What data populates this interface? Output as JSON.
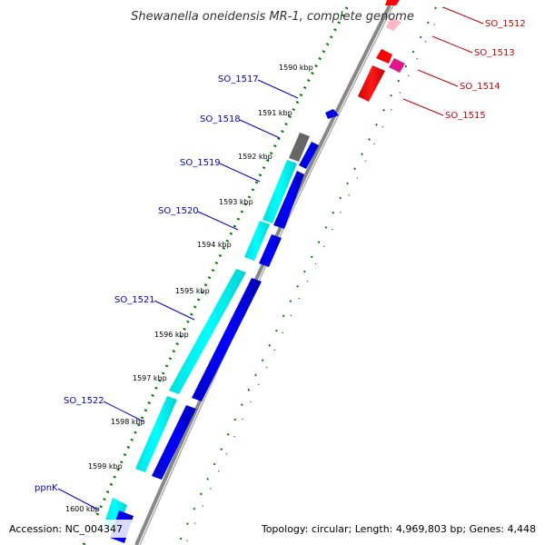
{
  "title": "Shewanella oneidensis MR-1, complete genome",
  "footer": {
    "accession": "Accession: NC_004347",
    "topology": "Topology: circular; Length: 4,969,803 bp; Genes: 4,448"
  },
  "kbp_ticks": [
    "1590 kbp",
    "1591 kbp",
    "1592 kbp",
    "1593 kbp",
    "1594 kbp",
    "1595 kbp",
    "1596 kbp",
    "1597 kbp",
    "1598 kbp",
    "1599 kbp",
    "1600 kbp"
  ],
  "genes_left": [
    "SO_1517",
    "SO_1518",
    "SO_1519",
    "SO_1520",
    "SO_1521",
    "SO_1522",
    "ppnK"
  ],
  "genes_right": [
    "SO_1512",
    "SO_1513",
    "SO_1514",
    "SO_1515"
  ],
  "colors": {
    "cds": "#0000ff",
    "rna": "#00ffff",
    "pseudo": "#666666",
    "reverse": "#ff0000",
    "reverse_alt": "#ff1493",
    "reverse_faded": "#ffb6c1",
    "left_label": "#0000cc",
    "right_label": "#cc0000",
    "dots": "#008000",
    "backbone": "#888888"
  }
}
